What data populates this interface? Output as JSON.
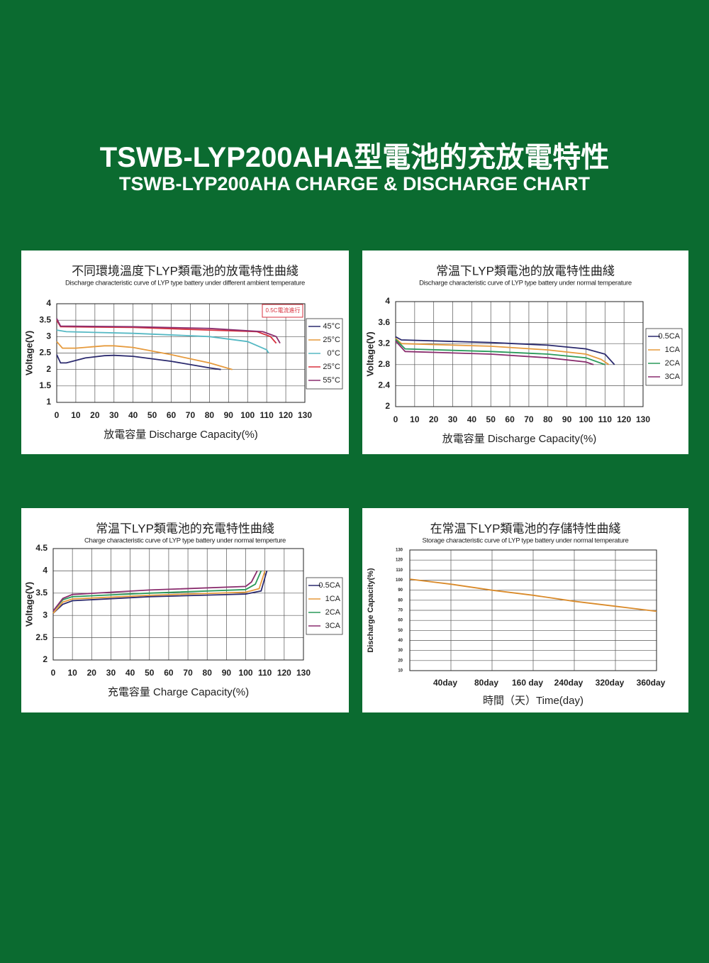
{
  "header": {
    "title": "TSWB-LYP200AHA型電池的充放電特性",
    "subtitle": "TSWB-LYP200AHA CHARGE & DISCHARGE CHART"
  },
  "chart_data": [
    {
      "type": "line",
      "title": "不同環境溫度下LYP類電池的放電特性曲綫",
      "subtitle": "Discharge characteristic curve of LYP type battery under different ambient temperature",
      "x_label": "放電容量 Discharge Capacity(%)",
      "y_label": "Voltage(V)",
      "annotation": "0.5C電流進行",
      "xlim": [
        0,
        130
      ],
      "xticks": [
        0,
        10,
        20,
        30,
        40,
        50,
        60,
        70,
        80,
        90,
        100,
        110,
        120,
        130
      ],
      "ylim": [
        1,
        4
      ],
      "yticks": [
        1,
        1.5,
        2,
        2.5,
        3,
        3.5,
        4
      ],
      "grid": true,
      "legend": "right",
      "series": [
        {
          "name": "45°C",
          "color": "#2b2a6e",
          "x": [
            0,
            2,
            5,
            15,
            25,
            30,
            40,
            60,
            80,
            86
          ],
          "values": [
            2.45,
            2.2,
            2.2,
            2.35,
            2.42,
            2.43,
            2.4,
            2.25,
            2.05,
            2.0
          ]
        },
        {
          "name": "25°C",
          "color": "#e69a3c",
          "x": [
            0,
            3,
            10,
            25,
            30,
            40,
            60,
            80,
            92
          ],
          "values": [
            2.85,
            2.65,
            2.65,
            2.72,
            2.72,
            2.67,
            2.45,
            2.2,
            2.0
          ]
        },
        {
          "name": "0°C",
          "color": "#56b9c4",
          "x": [
            0,
            5,
            40,
            80,
            100,
            110,
            111
          ],
          "values": [
            3.2,
            3.15,
            3.1,
            3.0,
            2.85,
            2.6,
            2.5
          ]
        },
        {
          "name": "25°C",
          "color": "#d8323f",
          "x": [
            0,
            2,
            40,
            80,
            105,
            112,
            115
          ],
          "values": [
            3.5,
            3.3,
            3.28,
            3.2,
            3.15,
            3.0,
            2.8
          ]
        },
        {
          "name": "55°C",
          "color": "#8a2d6e",
          "x": [
            0,
            2,
            40,
            80,
            108,
            115,
            117
          ],
          "values": [
            3.55,
            3.32,
            3.3,
            3.25,
            3.15,
            3.0,
            2.8
          ]
        }
      ]
    },
    {
      "type": "line",
      "title": "常温下LYP類電池的放電特性曲綫",
      "subtitle": "Discharge characteristic curve of LYP type battery under normal temperature",
      "x_label": "放電容量 Discharge Capacity(%)",
      "y_label": "Voltage(V)",
      "xlim": [
        0,
        130
      ],
      "xticks": [
        0,
        10,
        20,
        30,
        40,
        50,
        60,
        70,
        80,
        90,
        100,
        110,
        120,
        130
      ],
      "ylim": [
        2,
        4
      ],
      "yticks": [
        2,
        2.4,
        2.8,
        3.2,
        3.6,
        4
      ],
      "grid": true,
      "legend": "right",
      "series": [
        {
          "name": "0.5CA",
          "color": "#2b2a6e",
          "x": [
            0,
            3,
            50,
            80,
            100,
            110,
            115
          ],
          "values": [
            3.33,
            3.27,
            3.22,
            3.17,
            3.1,
            3.0,
            2.8
          ]
        },
        {
          "name": "1CA",
          "color": "#e69a3c",
          "x": [
            0,
            3,
            50,
            80,
            100,
            108,
            112
          ],
          "values": [
            3.3,
            3.2,
            3.15,
            3.08,
            3.0,
            2.9,
            2.8
          ]
        },
        {
          "name": "2CA",
          "color": "#2a9a5a",
          "x": [
            0,
            5,
            50,
            80,
            100,
            110
          ],
          "values": [
            3.28,
            3.1,
            3.05,
            3.0,
            2.93,
            2.8
          ]
        },
        {
          "name": "3CA",
          "color": "#8a2d6e",
          "x": [
            0,
            5,
            50,
            80,
            100,
            104
          ],
          "values": [
            3.25,
            3.05,
            3.0,
            2.93,
            2.85,
            2.8
          ]
        }
      ]
    },
    {
      "type": "line",
      "title": "常温下LYP類電池的充電特性曲綫",
      "subtitle": "Charge characteristic curve of LYP type battery under normal temperture",
      "x_label": "充電容量 Charge Capacity(%)",
      "y_label": "Voltage(V)",
      "xlim": [
        0,
        130
      ],
      "xticks": [
        0,
        10,
        20,
        30,
        40,
        50,
        60,
        70,
        80,
        90,
        100,
        110,
        120,
        130
      ],
      "ylim": [
        2,
        4.5
      ],
      "yticks": [
        2,
        2.5,
        3,
        3.5,
        4,
        4.5
      ],
      "grid": true,
      "legend": "right",
      "series": [
        {
          "name": "0.5CA",
          "color": "#2b2a6e",
          "x": [
            0,
            5,
            10,
            50,
            100,
            108,
            111
          ],
          "values": [
            3.05,
            3.25,
            3.33,
            3.42,
            3.48,
            3.55,
            4.0
          ]
        },
        {
          "name": "1CA",
          "color": "#e69a3c",
          "x": [
            0,
            5,
            10,
            50,
            100,
            107,
            110
          ],
          "values": [
            3.05,
            3.3,
            3.37,
            3.45,
            3.52,
            3.6,
            4.0
          ]
        },
        {
          "name": "2CA",
          "color": "#2a9a5a",
          "x": [
            0,
            5,
            10,
            50,
            100,
            105,
            108
          ],
          "values": [
            3.1,
            3.35,
            3.42,
            3.5,
            3.58,
            3.7,
            4.0
          ]
        },
        {
          "name": "3CA",
          "color": "#8a2d6e",
          "x": [
            0,
            5,
            10,
            50,
            100,
            103,
            106
          ],
          "values": [
            3.1,
            3.38,
            3.47,
            3.57,
            3.65,
            3.75,
            4.0
          ]
        }
      ]
    },
    {
      "type": "line",
      "title": "在常温下LYP類電池的存儲特性曲綫",
      "subtitle": "Storage characteristic curve of LYP type battery under normal temperature",
      "x_label": "時間（天）Time(day)",
      "y_label": "Discharge Capacity(%)",
      "categories": [
        null,
        "40day",
        "80day",
        "160 day",
        "240day",
        "320day",
        "360day"
      ],
      "values": [
        101,
        96,
        90,
        85,
        79,
        74,
        69
      ],
      "color": "#d98a2a",
      "ylim": [
        10,
        130
      ],
      "yticks": [
        10,
        20,
        30,
        40,
        50,
        60,
        70,
        80,
        90,
        100,
        110,
        120,
        130
      ],
      "grid": true
    }
  ]
}
